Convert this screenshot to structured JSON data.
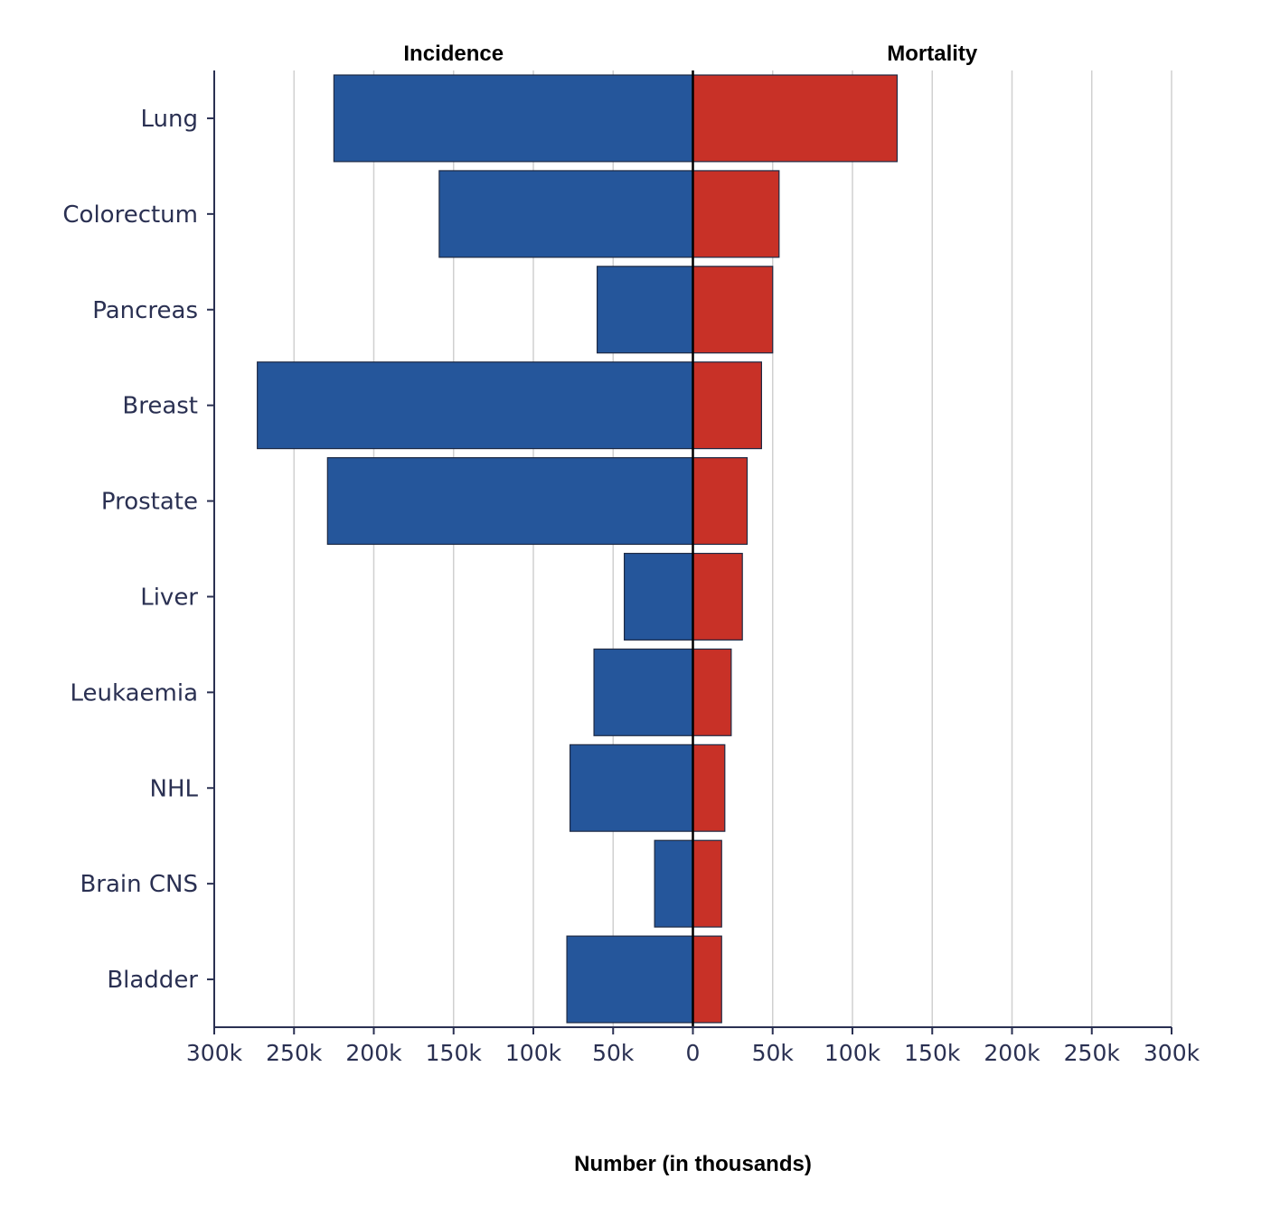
{
  "chart_data": {
    "type": "bar",
    "orientation": "horizontal-diverging",
    "panel_titles": {
      "left": "Incidence",
      "right": "Mortality"
    },
    "xlabel": "Number (in thousands)",
    "categories": [
      "Lung",
      "Colorectum",
      "Pancreas",
      "Breast",
      "Prostate",
      "Liver",
      "Leukaemia",
      "NHL",
      "Brain CNS",
      "Bladder"
    ],
    "series": [
      {
        "name": "Incidence",
        "side": "left",
        "color": "#25569b",
        "values": [
          225,
          159,
          60,
          273,
          229,
          43,
          62,
          77,
          24,
          79
        ]
      },
      {
        "name": "Mortality",
        "side": "right",
        "color": "#c83127",
        "values": [
          128,
          54,
          50,
          43,
          34,
          31,
          24,
          20,
          18,
          18
        ]
      }
    ],
    "xlim": [
      -300,
      300
    ],
    "x_ticks": [
      -300,
      -250,
      -200,
      -150,
      -100,
      -50,
      0,
      50,
      100,
      150,
      200,
      250,
      300
    ],
    "x_tick_labels": [
      "300k",
      "250k",
      "200k",
      "150k",
      "100k",
      "50k",
      "0",
      "50k",
      "100k",
      "150k",
      "200k",
      "250k",
      "300k"
    ],
    "grid": true
  }
}
